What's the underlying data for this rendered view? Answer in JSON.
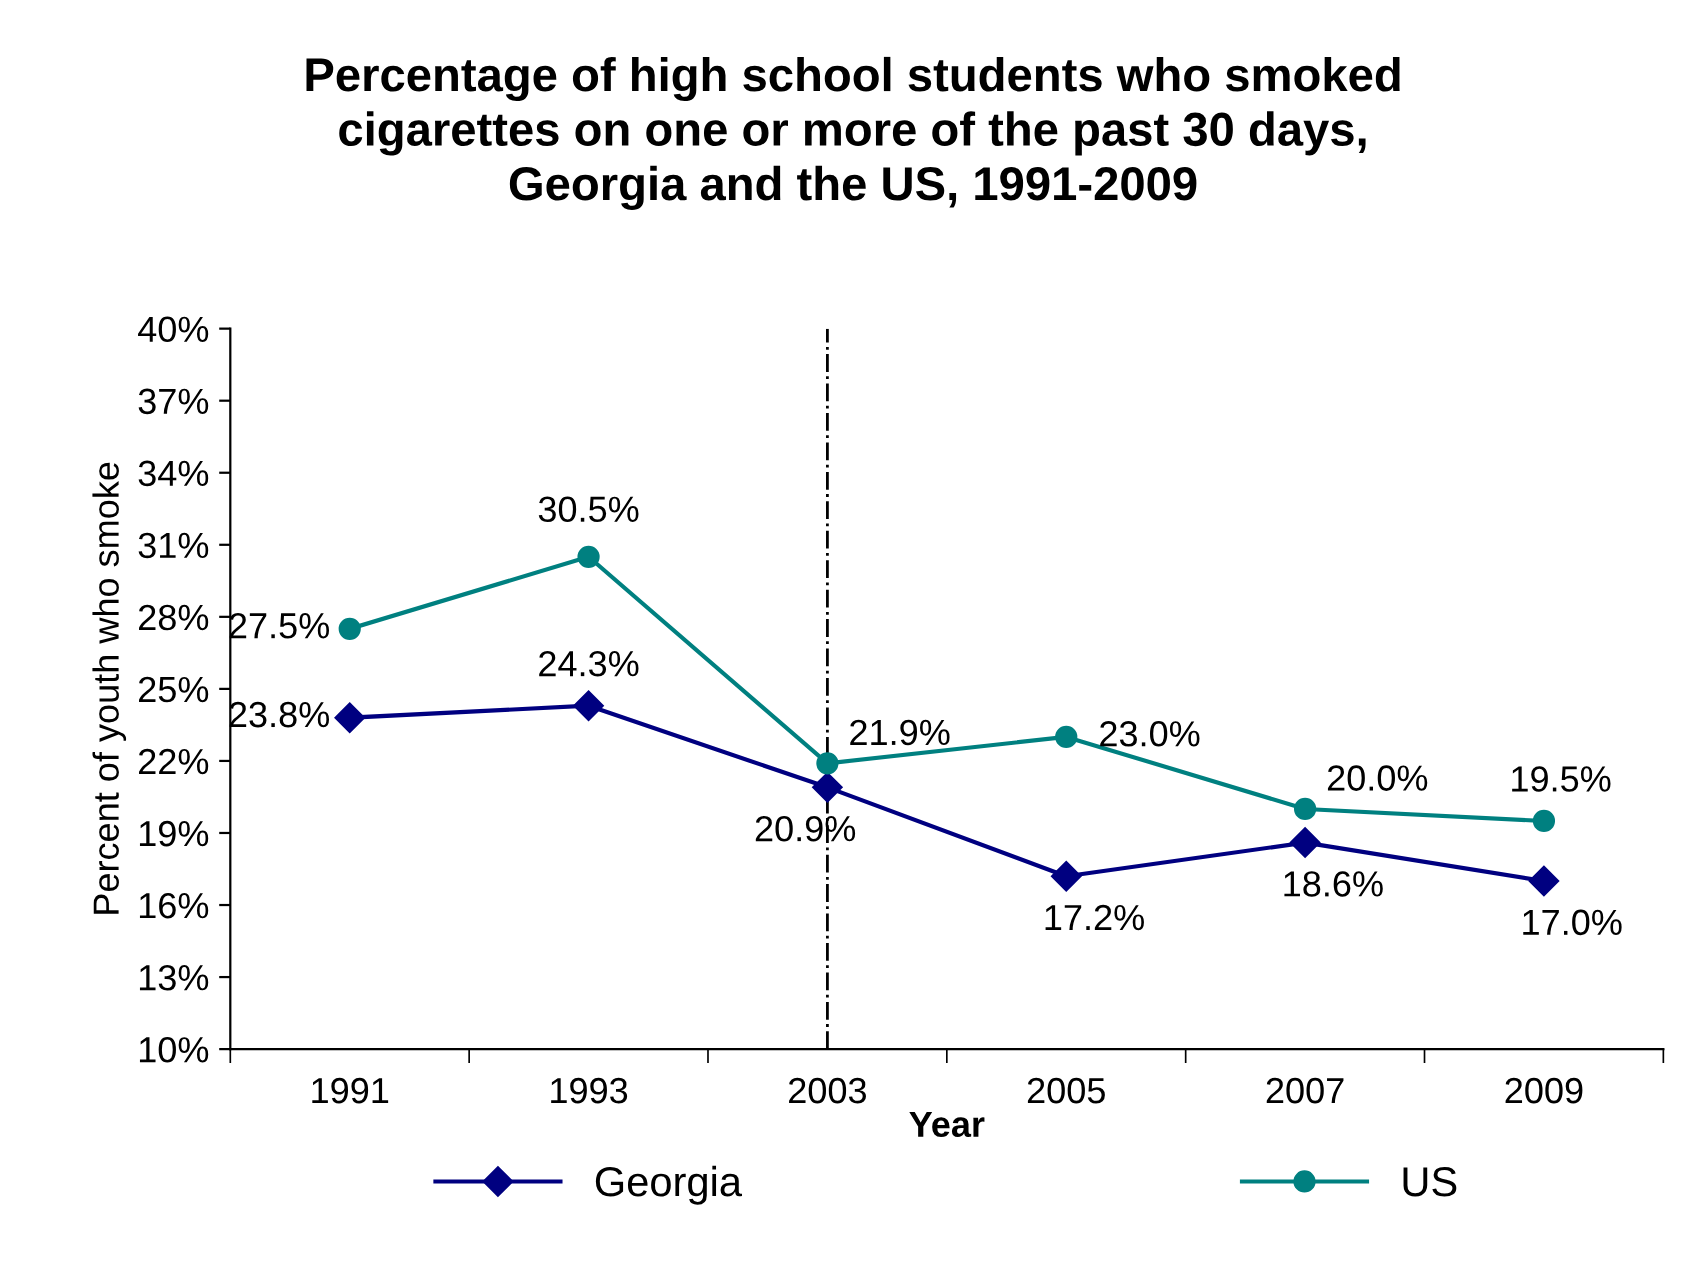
{
  "chart_data": {
    "type": "line",
    "title": "Percentage of high school students who smoked\ncigarettes on one or more of the past 30 days,\nGeorgia and the US, 1991-2009",
    "xlabel": "Year",
    "ylabel": "Percent of youth who smoke",
    "categories": [
      "1991",
      "1993",
      "2003",
      "2005",
      "2007",
      "2009"
    ],
    "series": [
      {
        "name": "Georgia",
        "color": "#000080",
        "marker": "diamond",
        "values": [
          23.8,
          24.3,
          20.9,
          17.2,
          18.6,
          17.0
        ],
        "value_labels": [
          "23.8%",
          "24.3%",
          "20.9%",
          "17.2%",
          "18.6%",
          "17.0%"
        ]
      },
      {
        "name": "US",
        "color": "#008080",
        "marker": "circle",
        "values": [
          27.5,
          30.5,
          21.9,
          23.0,
          20.0,
          19.5
        ],
        "value_labels": [
          "27.5%",
          "30.5%",
          "21.9%",
          "23.0%",
          "20.0%",
          "19.5%"
        ]
      }
    ],
    "ylim": [
      10,
      40
    ],
    "yticks": [
      {
        "value": 10,
        "label": "10%"
      },
      {
        "value": 13,
        "label": "13%"
      },
      {
        "value": 16,
        "label": "16%"
      },
      {
        "value": 19,
        "label": "19%"
      },
      {
        "value": 22,
        "label": "22%"
      },
      {
        "value": 25,
        "label": "25%"
      },
      {
        "value": 28,
        "label": "28%"
      },
      {
        "value": 31,
        "label": "31%"
      },
      {
        "value": 34,
        "label": "34%"
      },
      {
        "value": 37,
        "label": "37%"
      },
      {
        "value": 40,
        "label": "40%"
      }
    ],
    "ref_lines": [
      {
        "axis": "x",
        "value": "2003",
        "color": "#000000",
        "line_style": "dashdot"
      }
    ],
    "grid": false,
    "legend": "bottom"
  }
}
